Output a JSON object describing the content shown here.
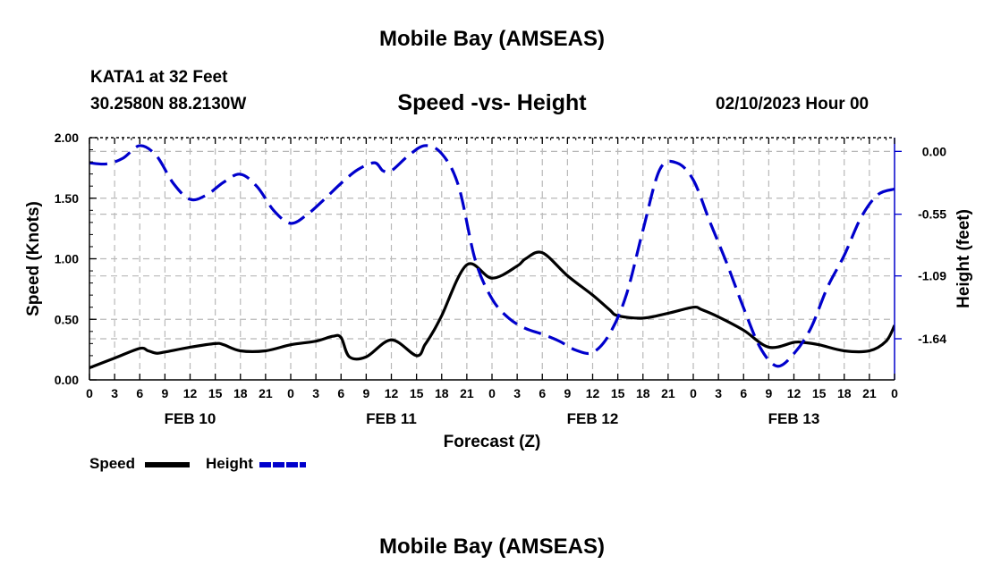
{
  "header": {
    "title": "Mobile Bay (AMSEAS)",
    "station": "KATA1 at 32 Feet",
    "coordinates": "30.2580N  88.2130W",
    "subtitle": "Speed -vs- Height",
    "datetime": "02/10/2023 Hour 00"
  },
  "footer": {
    "title": "Mobile Bay (AMSEAS)"
  },
  "legend": {
    "items": [
      {
        "label": "Speed",
        "color": "#000000"
      },
      {
        "label": "Height",
        "color": "#0000cc"
      }
    ]
  },
  "chart_data": {
    "type": "line",
    "xlabel": "Forecast (Z)",
    "ylabel": "Speed (Knots)",
    "y2label": "Height (feet)",
    "xlim": [
      0,
      96
    ],
    "ylim": [
      0,
      2.0
    ],
    "y2lim": [
      -2.0,
      0.12
    ],
    "grid": true,
    "x_tick_labels": [
      "0",
      "3",
      "6",
      "9",
      "12",
      "15",
      "18",
      "21",
      "0",
      "3",
      "6",
      "9",
      "12",
      "15",
      "18",
      "21",
      "0",
      "3",
      "6",
      "9",
      "12",
      "15",
      "18",
      "21",
      "0",
      "3",
      "6",
      "9",
      "12",
      "15",
      "18",
      "21",
      "0"
    ],
    "y_ticks": [
      0.0,
      0.5,
      1.0,
      1.5,
      2.0
    ],
    "y_tick_labels": [
      "0.00",
      "0.50",
      "1.00",
      "1.50",
      "2.00"
    ],
    "y2_ticks": [
      0.0,
      -0.55,
      -1.09,
      -1.64
    ],
    "y2_tick_labels": [
      "0.00",
      "-0.55",
      "-1.09",
      "-1.64"
    ],
    "day_labels": [
      {
        "label": "FEB 10",
        "hour": 12
      },
      {
        "label": "FEB 11",
        "hour": 36
      },
      {
        "label": "FEB 12",
        "hour": 60
      },
      {
        "label": "FEB 13",
        "hour": 84
      }
    ],
    "series": [
      {
        "name": "Speed",
        "axis": "left",
        "color": "#000000",
        "dash": "solid",
        "x": [
          0,
          3,
          6,
          7,
          8,
          9,
          12,
          15,
          16,
          18,
          21,
          24,
          27,
          29,
          30,
          31,
          33,
          36,
          39,
          40,
          41,
          42,
          45,
          48,
          51,
          52,
          54,
          57,
          60,
          62,
          63,
          66,
          69,
          72,
          73,
          75,
          78,
          81,
          84,
          85,
          87,
          90,
          93,
          95,
          96
        ],
        "values": [
          0.1,
          0.18,
          0.26,
          0.24,
          0.22,
          0.23,
          0.27,
          0.3,
          0.29,
          0.24,
          0.24,
          0.29,
          0.32,
          0.36,
          0.35,
          0.19,
          0.19,
          0.33,
          0.2,
          0.29,
          0.4,
          0.53,
          0.95,
          0.84,
          0.94,
          1.0,
          1.05,
          0.86,
          0.7,
          0.58,
          0.53,
          0.51,
          0.55,
          0.6,
          0.58,
          0.52,
          0.41,
          0.27,
          0.31,
          0.31,
          0.29,
          0.24,
          0.24,
          0.32,
          0.45
        ]
      },
      {
        "name": "Height",
        "axis": "right",
        "color": "#0000cc",
        "dash": "dashed",
        "x": [
          0,
          2,
          4,
          6,
          8,
          10,
          12,
          14,
          16,
          18,
          20,
          22,
          24,
          26,
          28,
          30,
          32,
          34,
          35,
          36,
          38,
          40,
          42,
          44,
          46,
          48,
          50,
          52,
          54,
          56,
          58,
          60,
          62,
          64,
          66,
          68,
          70,
          72,
          74,
          76,
          78,
          80,
          82,
          84,
          86,
          88,
          90,
          92,
          94,
          96
        ],
        "values": [
          -0.1,
          -0.11,
          -0.06,
          0.05,
          -0.04,
          -0.28,
          -0.42,
          -0.38,
          -0.27,
          -0.2,
          -0.31,
          -0.52,
          -0.63,
          -0.55,
          -0.42,
          -0.28,
          -0.16,
          -0.1,
          -0.17,
          -0.17,
          -0.04,
          0.05,
          -0.02,
          -0.3,
          -0.95,
          -1.29,
          -1.46,
          -1.55,
          -1.6,
          -1.66,
          -1.74,
          -1.76,
          -1.6,
          -1.26,
          -0.69,
          -0.16,
          -0.1,
          -0.25,
          -0.62,
          -0.98,
          -1.37,
          -1.72,
          -1.88,
          -1.77,
          -1.55,
          -1.19,
          -0.91,
          -0.58,
          -0.38,
          -0.33
        ]
      }
    ]
  }
}
